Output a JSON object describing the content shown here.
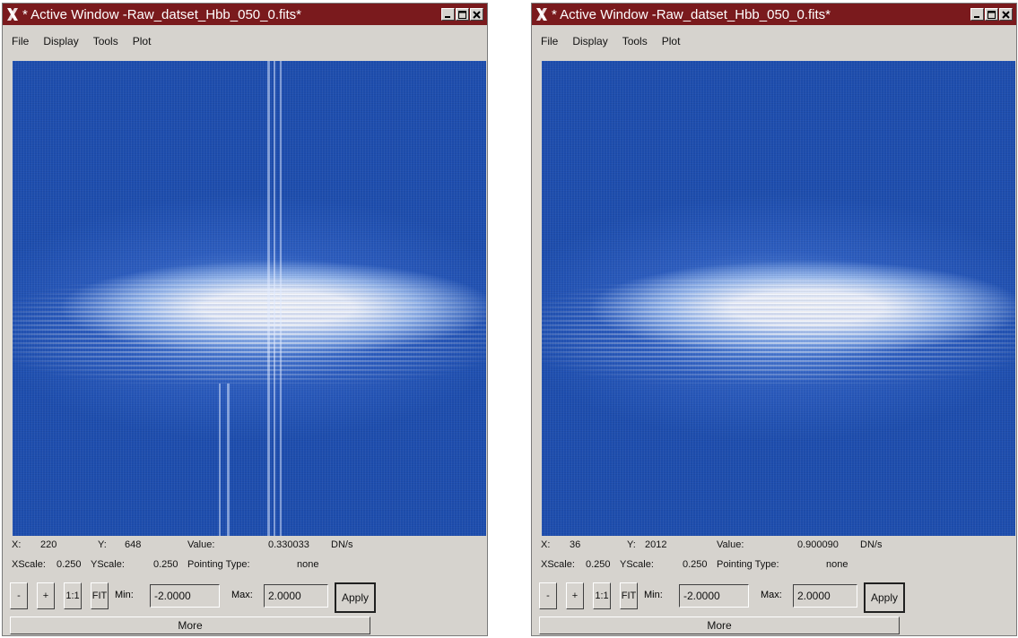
{
  "windows": [
    {
      "title": "* Active Window -Raw_datset_Hbb_050_0.fits*",
      "menu": [
        "File",
        "Display",
        "Tools",
        "Plot"
      ],
      "readout": {
        "x_label": "X:",
        "x": "220",
        "y_label": "Y:",
        "y": "648",
        "value_label": "Value:",
        "value": "0.330033",
        "unit": "DN/s"
      },
      "scale": {
        "xscale_label": "XScale:",
        "xscale": "0.250",
        "yscale_label": "YScale:",
        "yscale": "0.250",
        "pointing_label": "Pointing Type:",
        "pointing": "none"
      },
      "toolbar": {
        "minus": "-",
        "plus": "+",
        "one_to_one": "1:1",
        "fit": "FIT",
        "min_label": "Min:",
        "min": "-2.0000",
        "max_label": "Max:",
        "max": "2.0000",
        "apply": "Apply"
      },
      "more": "More"
    },
    {
      "title": "* Active Window -Raw_datset_Hbb_050_0.fits*",
      "menu": [
        "File",
        "Display",
        "Tools",
        "Plot"
      ],
      "readout": {
        "x_label": "X:",
        "x": "36",
        "y_label": "Y:",
        "y": "2012",
        "value_label": "Value:",
        "value": "0.900090",
        "unit": "DN/s"
      },
      "scale": {
        "xscale_label": "XScale:",
        "xscale": "0.250",
        "yscale_label": "YScale:",
        "yscale": "0.250",
        "pointing_label": "Pointing Type:",
        "pointing": "none"
      },
      "toolbar": {
        "minus": "-",
        "plus": "+",
        "one_to_one": "1:1",
        "fit": "FIT",
        "min_label": "Min:",
        "min": "-2.0000",
        "max_label": "Max:",
        "max": "2.0000",
        "apply": "Apply"
      },
      "more": "More"
    }
  ],
  "icons": [
    "x-window-logo-icon",
    "minimize-icon",
    "maximize-icon",
    "close-icon"
  ],
  "colors": {
    "titlebar": "#7a1a1d",
    "window_bg": "#d6d3ce",
    "image_blue": "#1e4fb0"
  }
}
